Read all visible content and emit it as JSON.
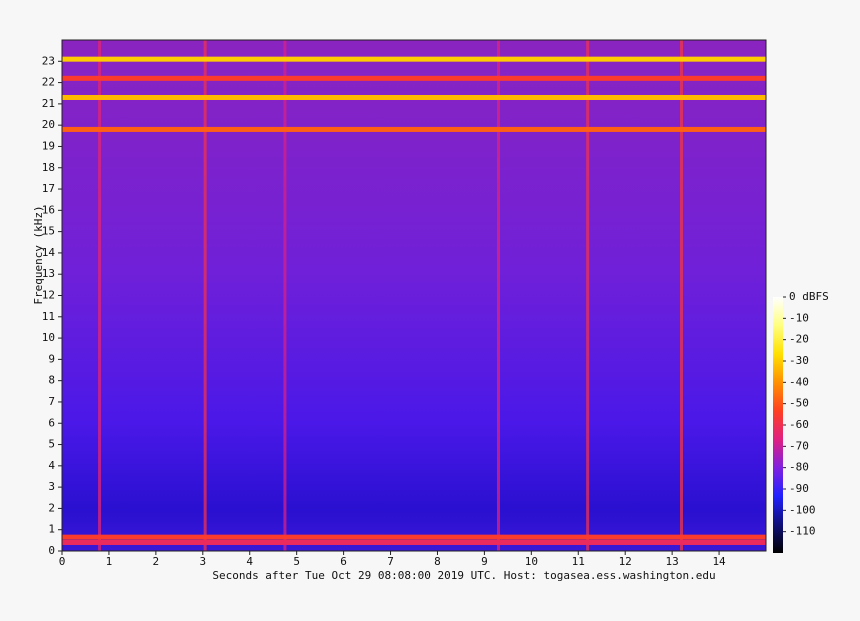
{
  "chart_data": {
    "type": "spectrogram",
    "xlabel": "Seconds after Tue Oct 29 08:08:00 2019 UTC. Host: togasea.ess.washington.edu",
    "ylabel": "Frequency (kHz)",
    "xlim": [
      0,
      15
    ],
    "ylim": [
      0,
      24
    ],
    "xticks": [
      0,
      1,
      2,
      3,
      4,
      5,
      6,
      7,
      8,
      9,
      10,
      11,
      12,
      13,
      14
    ],
    "yticks": [
      0,
      1,
      2,
      3,
      4,
      5,
      6,
      7,
      8,
      9,
      10,
      11,
      12,
      13,
      14,
      15,
      16,
      17,
      18,
      19,
      20,
      21,
      22,
      23
    ],
    "zlim": [
      -120,
      0
    ],
    "zticks": [
      {
        "value": 0,
        "label": "0 dBFS"
      },
      -10,
      -20,
      -30,
      -40,
      -50,
      -60,
      -70,
      -80,
      -90,
      -100,
      -110
    ],
    "colormap": [
      "#000000",
      "#10107a",
      "#2020ff",
      "#8020e0",
      "#e02080",
      "#ff4020",
      "#ff9000",
      "#ffe000",
      "#ffff80",
      "#ffffff"
    ],
    "bands": [
      {
        "y": 23.1,
        "z": -30
      },
      {
        "y": 22.2,
        "z": -55
      },
      {
        "y": 21.3,
        "z": -33
      },
      {
        "y": 19.8,
        "z": -48
      },
      {
        "y": 0.65,
        "z": -55
      },
      {
        "y": 0.4,
        "z": -62
      }
    ],
    "streaks": [
      {
        "x": 0.8,
        "z": -65
      },
      {
        "x": 3.05,
        "z": -60
      },
      {
        "x": 4.75,
        "z": -68
      },
      {
        "x": 9.3,
        "z": -66
      },
      {
        "x": 11.2,
        "z": -60
      },
      {
        "x": 13.2,
        "z": -58
      }
    ]
  }
}
